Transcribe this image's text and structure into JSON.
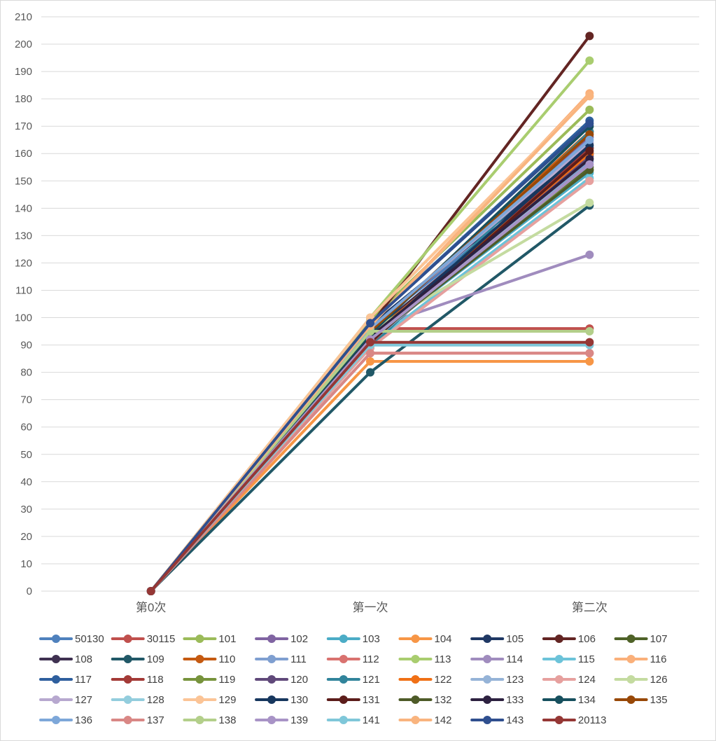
{
  "chart_data": {
    "type": "line",
    "title": "",
    "xlabel": "",
    "ylabel": "",
    "categories": [
      "第0次",
      "第一次",
      "第二次"
    ],
    "ylim": [
      0,
      210
    ],
    "ytick_step": 10,
    "legend_position": "bottom",
    "series": [
      {
        "name": "50130",
        "color": "#4f81bd",
        "values": [
          0,
          96,
          160
        ]
      },
      {
        "name": "30115",
        "color": "#c0504d",
        "values": [
          0,
          96,
          96
        ]
      },
      {
        "name": "101",
        "color": "#9bbb59",
        "values": [
          0,
          99,
          176
        ]
      },
      {
        "name": "102",
        "color": "#8064a2",
        "values": [
          0,
          95,
          166
        ]
      },
      {
        "name": "103",
        "color": "#4bacc6",
        "values": [
          0,
          92,
          153
        ]
      },
      {
        "name": "104",
        "color": "#f79646",
        "values": [
          0,
          84,
          84
        ]
      },
      {
        "name": "105",
        "color": "#1f3864",
        "values": [
          0,
          97,
          162
        ]
      },
      {
        "name": "106",
        "color": "#632523",
        "values": [
          0,
          97,
          203
        ]
      },
      {
        "name": "107",
        "color": "#4f6228",
        "values": [
          0,
          93,
          155
        ]
      },
      {
        "name": "108",
        "color": "#3f3151",
        "values": [
          0,
          94,
          160
        ]
      },
      {
        "name": "109",
        "color": "#215867",
        "values": [
          0,
          80,
          141
        ]
      },
      {
        "name": "110",
        "color": "#c55a11",
        "values": [
          0,
          95,
          168
        ]
      },
      {
        "name": "111",
        "color": "#7f9fd0",
        "values": [
          0,
          91,
          157
        ]
      },
      {
        "name": "112",
        "color": "#d9726f",
        "values": [
          0,
          87,
          87
        ]
      },
      {
        "name": "113",
        "color": "#a9cd6f",
        "values": [
          0,
          100,
          194
        ]
      },
      {
        "name": "114",
        "color": "#a08cbe",
        "values": [
          0,
          96,
          123
        ]
      },
      {
        "name": "115",
        "color": "#6cc3d9",
        "values": [
          0,
          90,
          151
        ]
      },
      {
        "name": "116",
        "color": "#fab07a",
        "values": [
          0,
          97,
          182
        ]
      },
      {
        "name": "117",
        "color": "#2e5f9e",
        "values": [
          0,
          98,
          172
        ]
      },
      {
        "name": "118",
        "color": "#a33a37",
        "values": [
          0,
          90,
          162
        ]
      },
      {
        "name": "119",
        "color": "#77933c",
        "values": [
          0,
          94,
          154
        ]
      },
      {
        "name": "120",
        "color": "#60497a",
        "values": [
          0,
          93,
          159
        ]
      },
      {
        "name": "121",
        "color": "#31849b",
        "values": [
          0,
          89,
          168
        ]
      },
      {
        "name": "122",
        "color": "#f07016",
        "values": [
          0,
          93,
          160
        ]
      },
      {
        "name": "123",
        "color": "#95b3d7",
        "values": [
          0,
          91,
          158
        ]
      },
      {
        "name": "124",
        "color": "#e6a09e",
        "values": [
          0,
          89,
          150
        ]
      },
      {
        "name": "126",
        "color": "#c4dba0",
        "values": [
          0,
          95,
          142
        ]
      },
      {
        "name": "127",
        "color": "#b7a8cf",
        "values": [
          0,
          96,
          164
        ]
      },
      {
        "name": "128",
        "color": "#93cddd",
        "values": [
          0,
          90,
          90
        ]
      },
      {
        "name": "129",
        "color": "#fbc496",
        "values": [
          0,
          100,
          181
        ]
      },
      {
        "name": "130",
        "color": "#17375e",
        "values": [
          0,
          92,
          163
        ]
      },
      {
        "name": "131",
        "color": "#5c1d1b",
        "values": [
          0,
          91,
          161
        ]
      },
      {
        "name": "132",
        "color": "#4e5b28",
        "values": [
          0,
          92,
          154
        ]
      },
      {
        "name": "133",
        "color": "#2d2140",
        "values": [
          0,
          93,
          158
        ]
      },
      {
        "name": "134",
        "color": "#17505e",
        "values": [
          0,
          94,
          170
        ]
      },
      {
        "name": "135",
        "color": "#984807",
        "values": [
          0,
          95,
          167
        ]
      },
      {
        "name": "136",
        "color": "#7da7d9",
        "values": [
          0,
          96,
          165
        ]
      },
      {
        "name": "137",
        "color": "#d98785",
        "values": [
          0,
          87,
          87
        ]
      },
      {
        "name": "138",
        "color": "#b3cf8a",
        "values": [
          0,
          95,
          95
        ]
      },
      {
        "name": "139",
        "color": "#a893c6",
        "values": [
          0,
          92,
          156
        ]
      },
      {
        "name": "141",
        "color": "#7fc7d9",
        "values": [
          0,
          90,
          90
        ]
      },
      {
        "name": "142",
        "color": "#f9b47e",
        "values": [
          0,
          97,
          181
        ]
      },
      {
        "name": "143",
        "color": "#2f4f8f",
        "values": [
          0,
          98,
          171
        ]
      },
      {
        "name": "20113",
        "color": "#953735",
        "values": [
          0,
          91,
          91
        ]
      }
    ]
  }
}
